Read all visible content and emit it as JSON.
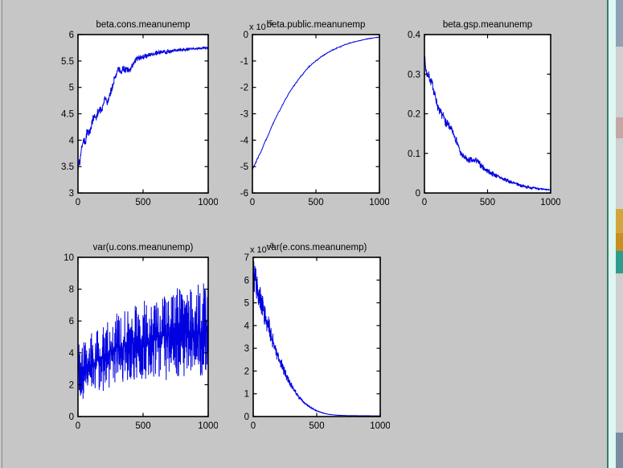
{
  "window": {
    "figure_bg": "#c6c6c6",
    "axes_bg": "#ffffff",
    "axes_frame_color": "#000000",
    "text_color": "#000000",
    "trace_color": "#0000e0"
  },
  "edge_art": {
    "border_line": "#8a8a8a",
    "teal_line": "#3d7a70",
    "cyan_strip": "#ddf8f3",
    "top_block": "#93a0b4",
    "light_block": "#cfcfcf",
    "pink_block": "#c4a6a6",
    "icon_yellow": "#d2a53c",
    "icon_orange": "#c68f1e",
    "icon_teal": "#2f9c8c",
    "bottom_block": "#7d8ba1"
  },
  "chart_data": [
    {
      "type": "line",
      "title": "beta.cons.meanunemp",
      "xlabel": "",
      "ylabel": "",
      "xlim": [
        0,
        1000
      ],
      "ylim": [
        3,
        6
      ],
      "xticks": [
        0,
        500,
        1000
      ],
      "xtick_labels": [
        "0",
        "500",
        "1000"
      ],
      "yticks": [
        3,
        3.5,
        4,
        4.5,
        5,
        5.5,
        6
      ],
      "ytick_labels": [
        "3",
        "3.5",
        "4",
        "4.5",
        "5",
        "5.5",
        "6"
      ],
      "exponent": null,
      "grid": false,
      "legend": null,
      "line_color": "#0000e0",
      "trend": [
        [
          0,
          3.45
        ],
        [
          8,
          3.62
        ],
        [
          15,
          3.55
        ],
        [
          25,
          3.85
        ],
        [
          35,
          3.9
        ],
        [
          45,
          4.05
        ],
        [
          55,
          3.92
        ],
        [
          65,
          4.1
        ],
        [
          75,
          4.2
        ],
        [
          85,
          4.12
        ],
        [
          95,
          4.18
        ],
        [
          110,
          4.35
        ],
        [
          125,
          4.48
        ],
        [
          135,
          4.4
        ],
        [
          150,
          4.52
        ],
        [
          165,
          4.6
        ],
        [
          180,
          4.55
        ],
        [
          195,
          4.68
        ],
        [
          210,
          4.8
        ],
        [
          225,
          4.72
        ],
        [
          240,
          4.85
        ],
        [
          255,
          4.95
        ],
        [
          270,
          5.05
        ],
        [
          285,
          5.2
        ],
        [
          300,
          5.32
        ],
        [
          315,
          5.35
        ],
        [
          330,
          5.3
        ],
        [
          345,
          5.36
        ],
        [
          360,
          5.33
        ],
        [
          375,
          5.36
        ],
        [
          390,
          5.3
        ],
        [
          405,
          5.37
        ],
        [
          420,
          5.42
        ],
        [
          435,
          5.5
        ],
        [
          450,
          5.55
        ],
        [
          475,
          5.56
        ],
        [
          500,
          5.58
        ],
        [
          550,
          5.61
        ],
        [
          600,
          5.64
        ],
        [
          650,
          5.66
        ],
        [
          700,
          5.68
        ],
        [
          750,
          5.7
        ],
        [
          800,
          5.71
        ],
        [
          850,
          5.72
        ],
        [
          900,
          5.73
        ],
        [
          950,
          5.74
        ],
        [
          1000,
          5.75
        ]
      ],
      "noise": {
        "mode": "abs",
        "start": 0.1,
        "end": 0.013,
        "power": 1.7,
        "seed": 17,
        "points": 520
      }
    },
    {
      "type": "line",
      "title": "beta.public.meanunemp",
      "xlabel": "",
      "ylabel": "",
      "xlim": [
        0,
        1000
      ],
      "ylim": [
        -6,
        0
      ],
      "xticks": [
        0,
        500,
        1000
      ],
      "xtick_labels": [
        "0",
        "500",
        "1000"
      ],
      "yticks": [
        -6,
        -5,
        -4,
        -3,
        -2,
        -1,
        0
      ],
      "ytick_labels": [
        "-6",
        "-5",
        "-4",
        "-3",
        "-2",
        "-1",
        "0"
      ],
      "exponent": {
        "base": "x 10",
        "exp": "-5"
      },
      "grid": false,
      "legend": null,
      "line_color": "#0000e0",
      "trend": [
        [
          0,
          -5.1
        ],
        [
          25,
          -4.85
        ],
        [
          50,
          -4.6
        ],
        [
          75,
          -4.35
        ],
        [
          100,
          -4.05
        ],
        [
          125,
          -3.8
        ],
        [
          150,
          -3.5
        ],
        [
          175,
          -3.25
        ],
        [
          200,
          -3.0
        ],
        [
          225,
          -2.78
        ],
        [
          250,
          -2.55
        ],
        [
          275,
          -2.33
        ],
        [
          300,
          -2.12
        ],
        [
          325,
          -1.95
        ],
        [
          350,
          -1.78
        ],
        [
          375,
          -1.62
        ],
        [
          400,
          -1.48
        ],
        [
          425,
          -1.33
        ],
        [
          450,
          -1.2
        ],
        [
          475,
          -1.1
        ],
        [
          500,
          -1.0
        ],
        [
          525,
          -0.9
        ],
        [
          550,
          -0.82
        ],
        [
          575,
          -0.74
        ],
        [
          600,
          -0.67
        ],
        [
          625,
          -0.6
        ],
        [
          650,
          -0.54
        ],
        [
          675,
          -0.49
        ],
        [
          700,
          -0.44
        ],
        [
          725,
          -0.39
        ],
        [
          750,
          -0.35
        ],
        [
          775,
          -0.31
        ],
        [
          800,
          -0.28
        ],
        [
          825,
          -0.25
        ],
        [
          850,
          -0.22
        ],
        [
          875,
          -0.19
        ],
        [
          900,
          -0.17
        ],
        [
          925,
          -0.15
        ],
        [
          950,
          -0.13
        ],
        [
          975,
          -0.11
        ],
        [
          1000,
          -0.1
        ]
      ],
      "noise": {
        "mode": "abs",
        "start": 0.035,
        "end": 0.01,
        "power": 2.2,
        "seed": 29,
        "points": 380
      }
    },
    {
      "type": "line",
      "title": "beta.gsp.meanunemp",
      "xlabel": "",
      "ylabel": "",
      "xlim": [
        0,
        1000
      ],
      "ylim": [
        0,
        0.4
      ],
      "xticks": [
        0,
        500,
        1000
      ],
      "xtick_labels": [
        "0",
        "500",
        "1000"
      ],
      "yticks": [
        0,
        0.1,
        0.2,
        0.3,
        0.4
      ],
      "ytick_labels": [
        "0",
        "0.1",
        "0.2",
        "0.3",
        "0.4"
      ],
      "exponent": null,
      "grid": false,
      "legend": null,
      "line_color": "#0000e0",
      "trend": [
        [
          0,
          0.345
        ],
        [
          10,
          0.315
        ],
        [
          20,
          0.3
        ],
        [
          35,
          0.295
        ],
        [
          50,
          0.282
        ],
        [
          65,
          0.272
        ],
        [
          80,
          0.25
        ],
        [
          95,
          0.232
        ],
        [
          110,
          0.212
        ],
        [
          125,
          0.202
        ],
        [
          140,
          0.198
        ],
        [
          155,
          0.19
        ],
        [
          170,
          0.178
        ],
        [
          185,
          0.172
        ],
        [
          200,
          0.166
        ],
        [
          215,
          0.158
        ],
        [
          230,
          0.15
        ],
        [
          245,
          0.14
        ],
        [
          260,
          0.126
        ],
        [
          275,
          0.112
        ],
        [
          290,
          0.098
        ],
        [
          305,
          0.092
        ],
        [
          320,
          0.088
        ],
        [
          335,
          0.084
        ],
        [
          350,
          0.082
        ],
        [
          365,
          0.084
        ],
        [
          380,
          0.08
        ],
        [
          395,
          0.082
        ],
        [
          410,
          0.083
        ],
        [
          425,
          0.078
        ],
        [
          440,
          0.072
        ],
        [
          455,
          0.068
        ],
        [
          470,
          0.063
        ],
        [
          485,
          0.059
        ],
        [
          500,
          0.056
        ],
        [
          525,
          0.051
        ],
        [
          550,
          0.047
        ],
        [
          575,
          0.043
        ],
        [
          600,
          0.039
        ],
        [
          625,
          0.035
        ],
        [
          650,
          0.032
        ],
        [
          675,
          0.029
        ],
        [
          700,
          0.026
        ],
        [
          725,
          0.023
        ],
        [
          750,
          0.021
        ],
        [
          775,
          0.018
        ],
        [
          800,
          0.016
        ],
        [
          825,
          0.015
        ],
        [
          850,
          0.013
        ],
        [
          875,
          0.012
        ],
        [
          900,
          0.011
        ],
        [
          925,
          0.01
        ],
        [
          950,
          0.009
        ],
        [
          975,
          0.0085
        ],
        [
          1000,
          0.008
        ]
      ],
      "noise": {
        "mode": "abs",
        "start": 0.013,
        "end": 0.0012,
        "power": 1.6,
        "seed": 7,
        "points": 560
      }
    },
    {
      "type": "line",
      "title": "var(u.cons.meanunemp)",
      "xlabel": "",
      "ylabel": "",
      "xlim": [
        0,
        1000
      ],
      "ylim": [
        0,
        10
      ],
      "xticks": [
        0,
        500,
        1000
      ],
      "xtick_labels": [
        "0",
        "500",
        "1000"
      ],
      "yticks": [
        0,
        2,
        4,
        6,
        8,
        10
      ],
      "ytick_labels": [
        "0",
        "2",
        "4",
        "6",
        "8",
        "10"
      ],
      "exponent": null,
      "grid": false,
      "legend": null,
      "line_color": "#0000e0",
      "trend": [
        [
          0,
          2.9
        ],
        [
          50,
          3.1
        ],
        [
          100,
          3.25
        ],
        [
          150,
          3.45
        ],
        [
          200,
          3.75
        ],
        [
          250,
          4.1
        ],
        [
          300,
          4.25
        ],
        [
          350,
          4.4
        ],
        [
          400,
          4.55
        ],
        [
          450,
          4.65
        ],
        [
          500,
          4.75
        ],
        [
          550,
          4.9
        ],
        [
          600,
          5.0
        ],
        [
          650,
          5.1
        ],
        [
          700,
          5.05
        ],
        [
          750,
          5.15
        ],
        [
          800,
          5.2
        ],
        [
          850,
          5.25
        ],
        [
          900,
          5.3
        ],
        [
          950,
          5.35
        ],
        [
          1000,
          5.4
        ]
      ],
      "noise": {
        "mode": "abs",
        "start": 1.9,
        "end": 3.2,
        "power": 2.4,
        "seed": 101,
        "points": 950
      }
    },
    {
      "type": "line",
      "title": "var(e.cons.meanunemp)",
      "xlabel": "",
      "ylabel": "",
      "xlim": [
        0,
        1000
      ],
      "ylim": [
        0,
        7
      ],
      "xticks": [
        0,
        500,
        1000
      ],
      "xtick_labels": [
        "0",
        "500",
        "1000"
      ],
      "yticks": [
        0,
        1,
        2,
        3,
        4,
        5,
        6,
        7
      ],
      "ytick_labels": [
        "0",
        "1",
        "2",
        "3",
        "4",
        "5",
        "6",
        "7"
      ],
      "exponent": {
        "base": "x 10",
        "exp": "-3"
      },
      "grid": false,
      "legend": null,
      "line_color": "#0000e0",
      "trend": [
        [
          0,
          6.2
        ],
        [
          15,
          5.95
        ],
        [
          30,
          5.6
        ],
        [
          45,
          5.35
        ],
        [
          60,
          5.05
        ],
        [
          80,
          4.7
        ],
        [
          100,
          4.35
        ],
        [
          120,
          3.95
        ],
        [
          140,
          3.6
        ],
        [
          160,
          3.25
        ],
        [
          180,
          2.9
        ],
        [
          200,
          2.6
        ],
        [
          220,
          2.32
        ],
        [
          240,
          2.05
        ],
        [
          260,
          1.8
        ],
        [
          280,
          1.58
        ],
        [
          300,
          1.38
        ],
        [
          320,
          1.2
        ],
        [
          340,
          1.02
        ],
        [
          360,
          0.87
        ],
        [
          380,
          0.74
        ],
        [
          400,
          0.62
        ],
        [
          425,
          0.5
        ],
        [
          450,
          0.4
        ],
        [
          475,
          0.32
        ],
        [
          500,
          0.25
        ],
        [
          530,
          0.19
        ],
        [
          560,
          0.14
        ],
        [
          590,
          0.1
        ],
        [
          620,
          0.08
        ],
        [
          660,
          0.06
        ],
        [
          700,
          0.05
        ],
        [
          750,
          0.04
        ],
        [
          800,
          0.04
        ],
        [
          850,
          0.035
        ],
        [
          900,
          0.035
        ],
        [
          950,
          0.03
        ],
        [
          1000,
          0.03
        ]
      ],
      "noise": {
        "mode": "rel",
        "start": 0.13,
        "end": 0.02,
        "power": 1.9,
        "seed": 53,
        "points": 680
      }
    }
  ]
}
